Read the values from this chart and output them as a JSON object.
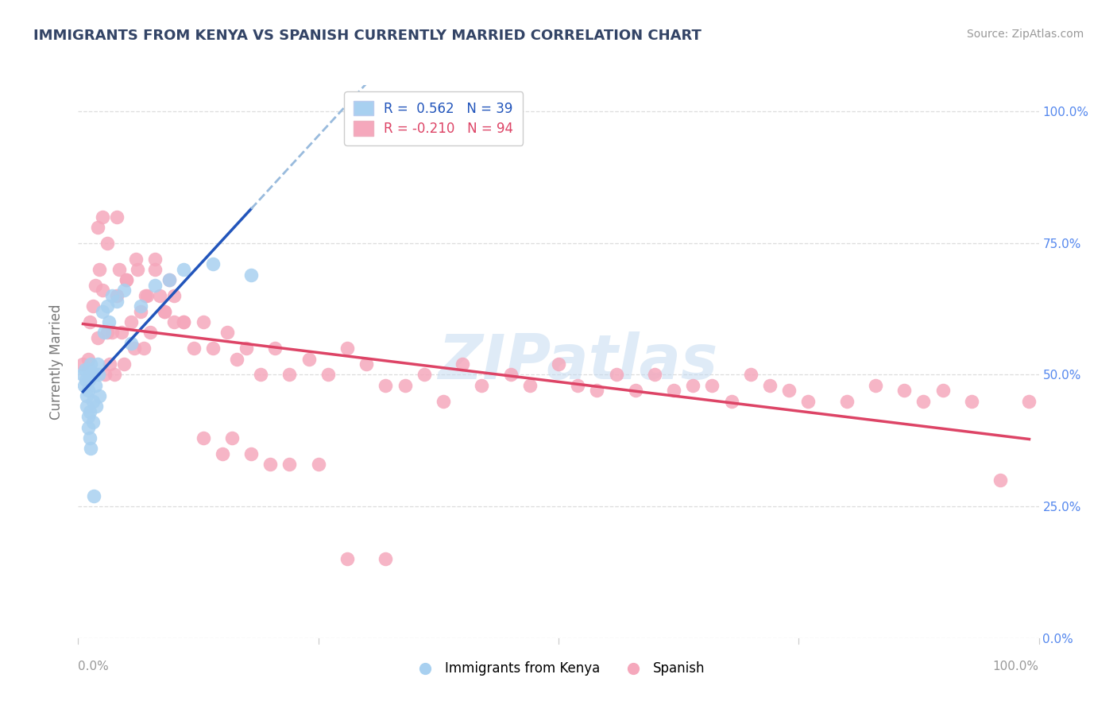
{
  "title": "IMMIGRANTS FROM KENYA VS SPANISH CURRENTLY MARRIED CORRELATION CHART",
  "source": "Source: ZipAtlas.com",
  "ylabel": "Currently Married",
  "legend_blue_label": "R =  0.562   N = 39",
  "legend_pink_label": "R = -0.210   N = 94",
  "legend_label1": "Immigrants from Kenya",
  "legend_label2": "Spanish",
  "watermark": "ZIPatlas",
  "blue_color": "#a8d0f0",
  "pink_color": "#f5a8bc",
  "blue_line_color": "#2255bb",
  "pink_line_color": "#dd4466",
  "dashed_line_color": "#99bbdd",
  "background_color": "#ffffff",
  "grid_color": "#dddddd",
  "xlim": [
    0.0,
    1.0
  ],
  "ylim": [
    0.0,
    1.05
  ],
  "yticks": [
    0.0,
    0.25,
    0.5,
    0.75,
    1.0
  ],
  "kenya_x": [
    0.005,
    0.006,
    0.007,
    0.008,
    0.009,
    0.009,
    0.01,
    0.01,
    0.01,
    0.011,
    0.011,
    0.012,
    0.012,
    0.013,
    0.013,
    0.014,
    0.015,
    0.015,
    0.016,
    0.017,
    0.018,
    0.019,
    0.02,
    0.021,
    0.022,
    0.025,
    0.027,
    0.03,
    0.032,
    0.035,
    0.04,
    0.048,
    0.055,
    0.065,
    0.08,
    0.095,
    0.11,
    0.14,
    0.18
  ],
  "kenya_y": [
    0.5,
    0.48,
    0.51,
    0.49,
    0.46,
    0.44,
    0.42,
    0.4,
    0.47,
    0.51,
    0.49,
    0.43,
    0.38,
    0.52,
    0.36,
    0.5,
    0.45,
    0.41,
    0.27,
    0.5,
    0.48,
    0.44,
    0.52,
    0.5,
    0.46,
    0.62,
    0.58,
    0.63,
    0.6,
    0.65,
    0.64,
    0.66,
    0.56,
    0.63,
    0.67,
    0.68,
    0.7,
    0.71,
    0.69
  ],
  "spanish_x": [
    0.005,
    0.01,
    0.012,
    0.015,
    0.018,
    0.02,
    0.022,
    0.025,
    0.028,
    0.03,
    0.033,
    0.035,
    0.038,
    0.04,
    0.043,
    0.045,
    0.048,
    0.05,
    0.055,
    0.058,
    0.062,
    0.065,
    0.068,
    0.072,
    0.075,
    0.08,
    0.085,
    0.09,
    0.095,
    0.1,
    0.11,
    0.12,
    0.13,
    0.14,
    0.155,
    0.165,
    0.175,
    0.19,
    0.205,
    0.22,
    0.24,
    0.26,
    0.28,
    0.3,
    0.32,
    0.34,
    0.36,
    0.38,
    0.4,
    0.42,
    0.45,
    0.47,
    0.5,
    0.52,
    0.54,
    0.56,
    0.58,
    0.6,
    0.62,
    0.64,
    0.66,
    0.68,
    0.7,
    0.72,
    0.74,
    0.76,
    0.8,
    0.83,
    0.86,
    0.88,
    0.9,
    0.93,
    0.96,
    0.99,
    0.02,
    0.025,
    0.03,
    0.04,
    0.05,
    0.06,
    0.07,
    0.08,
    0.09,
    0.1,
    0.11,
    0.13,
    0.15,
    0.16,
    0.18,
    0.2,
    0.22,
    0.25,
    0.28,
    0.32
  ],
  "spanish_y": [
    0.52,
    0.53,
    0.6,
    0.63,
    0.67,
    0.57,
    0.7,
    0.66,
    0.5,
    0.58,
    0.52,
    0.58,
    0.5,
    0.65,
    0.7,
    0.58,
    0.52,
    0.68,
    0.6,
    0.55,
    0.7,
    0.62,
    0.55,
    0.65,
    0.58,
    0.72,
    0.65,
    0.62,
    0.68,
    0.6,
    0.6,
    0.55,
    0.6,
    0.55,
    0.58,
    0.53,
    0.55,
    0.5,
    0.55,
    0.5,
    0.53,
    0.5,
    0.55,
    0.52,
    0.48,
    0.48,
    0.5,
    0.45,
    0.52,
    0.48,
    0.5,
    0.48,
    0.52,
    0.48,
    0.47,
    0.5,
    0.47,
    0.5,
    0.47,
    0.48,
    0.48,
    0.45,
    0.5,
    0.48,
    0.47,
    0.45,
    0.45,
    0.48,
    0.47,
    0.45,
    0.47,
    0.45,
    0.3,
    0.45,
    0.78,
    0.8,
    0.75,
    0.8,
    0.68,
    0.72,
    0.65,
    0.7,
    0.62,
    0.65,
    0.6,
    0.38,
    0.35,
    0.38,
    0.35,
    0.33,
    0.33,
    0.33,
    0.15,
    0.15
  ]
}
